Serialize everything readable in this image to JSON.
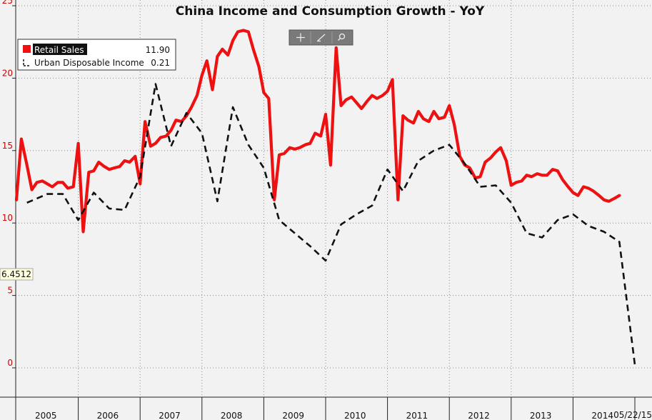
{
  "chart_data": {
    "type": "line",
    "title": "China Income and Consumption Growth - YoY",
    "ylim": [
      -2,
      25.5
    ],
    "yticks": [
      0,
      5,
      10,
      15,
      20,
      25
    ],
    "grid": true,
    "legend_position": "top-left",
    "x_start": 2005.0,
    "x_end": 2015.5,
    "year_labels": [
      "2005",
      "2006",
      "2007",
      "2008",
      "2009",
      "2010",
      "2011",
      "2012",
      "2013",
      "2014"
    ],
    "last_date_label": "05/22/15",
    "crosshair_label": "6.4512",
    "series": [
      {
        "name": "Retail Sales",
        "last_value": "11.90",
        "color": "#ee1111",
        "style": "solid",
        "points": [
          [
            2005.0,
            11.6
          ],
          [
            2005.08,
            15.8
          ],
          [
            2005.17,
            14.0
          ],
          [
            2005.25,
            12.3
          ],
          [
            2005.33,
            12.8
          ],
          [
            2005.42,
            12.9
          ],
          [
            2005.5,
            12.7
          ],
          [
            2005.58,
            12.5
          ],
          [
            2005.67,
            12.8
          ],
          [
            2005.75,
            12.8
          ],
          [
            2005.83,
            12.4
          ],
          [
            2005.92,
            12.5
          ],
          [
            2006.0,
            15.5
          ],
          [
            2006.08,
            9.4
          ],
          [
            2006.17,
            13.5
          ],
          [
            2006.25,
            13.6
          ],
          [
            2006.33,
            14.2
          ],
          [
            2006.42,
            13.9
          ],
          [
            2006.5,
            13.7
          ],
          [
            2006.58,
            13.8
          ],
          [
            2006.67,
            13.9
          ],
          [
            2006.75,
            14.3
          ],
          [
            2006.83,
            14.2
          ],
          [
            2006.92,
            14.6
          ],
          [
            2007.0,
            12.7
          ],
          [
            2007.08,
            17.0
          ],
          [
            2007.17,
            15.3
          ],
          [
            2007.25,
            15.5
          ],
          [
            2007.33,
            15.9
          ],
          [
            2007.42,
            16.0
          ],
          [
            2007.5,
            16.4
          ],
          [
            2007.58,
            17.1
          ],
          [
            2007.67,
            17.0
          ],
          [
            2007.75,
            17.4
          ],
          [
            2007.83,
            18.0
          ],
          [
            2007.92,
            18.8
          ],
          [
            2008.0,
            20.2
          ],
          [
            2008.08,
            21.2
          ],
          [
            2008.17,
            19.2
          ],
          [
            2008.25,
            21.5
          ],
          [
            2008.33,
            22.0
          ],
          [
            2008.42,
            21.6
          ],
          [
            2008.5,
            22.6
          ],
          [
            2008.58,
            23.2
          ],
          [
            2008.67,
            23.3
          ],
          [
            2008.75,
            23.2
          ],
          [
            2008.83,
            22.0
          ],
          [
            2008.92,
            20.8
          ],
          [
            2009.0,
            19.0
          ],
          [
            2009.08,
            18.6
          ],
          [
            2009.17,
            11.6
          ],
          [
            2009.25,
            14.7
          ],
          [
            2009.33,
            14.8
          ],
          [
            2009.42,
            15.2
          ],
          [
            2009.5,
            15.1
          ],
          [
            2009.58,
            15.2
          ],
          [
            2009.67,
            15.4
          ],
          [
            2009.75,
            15.5
          ],
          [
            2009.83,
            16.2
          ],
          [
            2009.92,
            16.0
          ],
          [
            2010.0,
            17.5
          ],
          [
            2010.08,
            14.0
          ],
          [
            2010.17,
            22.1
          ],
          [
            2010.25,
            18.1
          ],
          [
            2010.33,
            18.5
          ],
          [
            2010.42,
            18.7
          ],
          [
            2010.5,
            18.3
          ],
          [
            2010.58,
            17.9
          ],
          [
            2010.67,
            18.4
          ],
          [
            2010.75,
            18.8
          ],
          [
            2010.83,
            18.6
          ],
          [
            2010.92,
            18.8
          ],
          [
            2011.0,
            19.1
          ],
          [
            2011.08,
            19.9
          ],
          [
            2011.17,
            11.6
          ],
          [
            2011.25,
            17.4
          ],
          [
            2011.33,
            17.1
          ],
          [
            2011.42,
            16.9
          ],
          [
            2011.5,
            17.7
          ],
          [
            2011.58,
            17.2
          ],
          [
            2011.67,
            17.0
          ],
          [
            2011.75,
            17.7
          ],
          [
            2011.83,
            17.2
          ],
          [
            2011.92,
            17.3
          ],
          [
            2012.0,
            18.1
          ],
          [
            2012.08,
            16.8
          ],
          [
            2012.17,
            14.6
          ],
          [
            2012.25,
            14.0
          ],
          [
            2012.33,
            13.8
          ],
          [
            2012.42,
            13.1
          ],
          [
            2012.5,
            13.2
          ],
          [
            2012.58,
            14.2
          ],
          [
            2012.67,
            14.5
          ],
          [
            2012.75,
            14.9
          ],
          [
            2012.83,
            15.2
          ],
          [
            2012.92,
            14.3
          ],
          [
            2013.0,
            12.6
          ],
          [
            2013.08,
            12.8
          ],
          [
            2013.17,
            12.9
          ],
          [
            2013.25,
            13.3
          ],
          [
            2013.33,
            13.2
          ],
          [
            2013.42,
            13.4
          ],
          [
            2013.5,
            13.3
          ],
          [
            2013.58,
            13.3
          ],
          [
            2013.67,
            13.7
          ],
          [
            2013.75,
            13.6
          ],
          [
            2013.83,
            13.0
          ],
          [
            2013.92,
            12.5
          ],
          [
            2014.0,
            12.1
          ],
          [
            2014.08,
            11.9
          ],
          [
            2014.17,
            12.5
          ],
          [
            2014.25,
            12.4
          ],
          [
            2014.33,
            12.2
          ],
          [
            2014.42,
            11.9
          ],
          [
            2014.5,
            11.6
          ],
          [
            2014.58,
            11.5
          ],
          [
            2014.67,
            11.7
          ],
          [
            2014.75,
            11.9
          ]
        ]
      },
      {
        "name": "Urban Disposable Income",
        "last_value": "0.21",
        "color": "#111111",
        "style": "dashed",
        "points": [
          [
            2005.17,
            11.4
          ],
          [
            2005.5,
            12.0
          ],
          [
            2005.75,
            12.0
          ],
          [
            2006.0,
            10.2
          ],
          [
            2006.25,
            12.1
          ],
          [
            2006.5,
            11.0
          ],
          [
            2006.75,
            10.9
          ],
          [
            2007.0,
            13.2
          ],
          [
            2007.25,
            19.6
          ],
          [
            2007.5,
            15.3
          ],
          [
            2007.75,
            17.6
          ],
          [
            2008.0,
            16.2
          ],
          [
            2008.25,
            11.5
          ],
          [
            2008.5,
            18.0
          ],
          [
            2008.75,
            15.4
          ],
          [
            2009.0,
            13.8
          ],
          [
            2009.25,
            10.2
          ],
          [
            2009.5,
            9.3
          ],
          [
            2009.75,
            8.4
          ],
          [
            2010.0,
            7.4
          ],
          [
            2010.25,
            9.9
          ],
          [
            2010.5,
            10.6
          ],
          [
            2010.75,
            11.2
          ],
          [
            2011.0,
            13.7
          ],
          [
            2011.25,
            12.2
          ],
          [
            2011.5,
            14.3
          ],
          [
            2011.75,
            15.0
          ],
          [
            2012.0,
            15.4
          ],
          [
            2012.25,
            14.1
          ],
          [
            2012.5,
            12.5
          ],
          [
            2012.75,
            12.6
          ],
          [
            2013.0,
            11.4
          ],
          [
            2013.25,
            9.3
          ],
          [
            2013.5,
            9.0
          ],
          [
            2013.75,
            10.2
          ],
          [
            2014.0,
            10.6
          ],
          [
            2014.25,
            9.8
          ],
          [
            2014.5,
            9.4
          ],
          [
            2014.75,
            8.7
          ],
          [
            2015.0,
            0.21
          ]
        ]
      }
    ]
  }
}
